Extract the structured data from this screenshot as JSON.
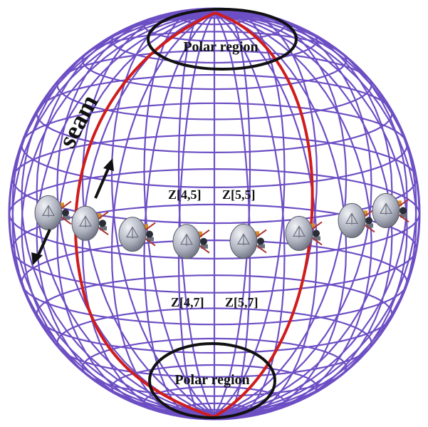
{
  "labels": {
    "polar_top": "Polar region",
    "polar_bottom": "Polar region",
    "seam": "seam",
    "zone_upper_left": "Z[4,5]",
    "zone_upper_right": "Z[5,5]",
    "zone_lower_left": "Z[4,7]",
    "zone_lower_right": "Z[5,7]"
  },
  "colors": {
    "grid": "#6d4fc4",
    "seam": "#d01c1c",
    "polar_ring": "#111111",
    "arrow": "#111111",
    "satellite_body": "#b8bcc8"
  },
  "satellite_count": 8
}
